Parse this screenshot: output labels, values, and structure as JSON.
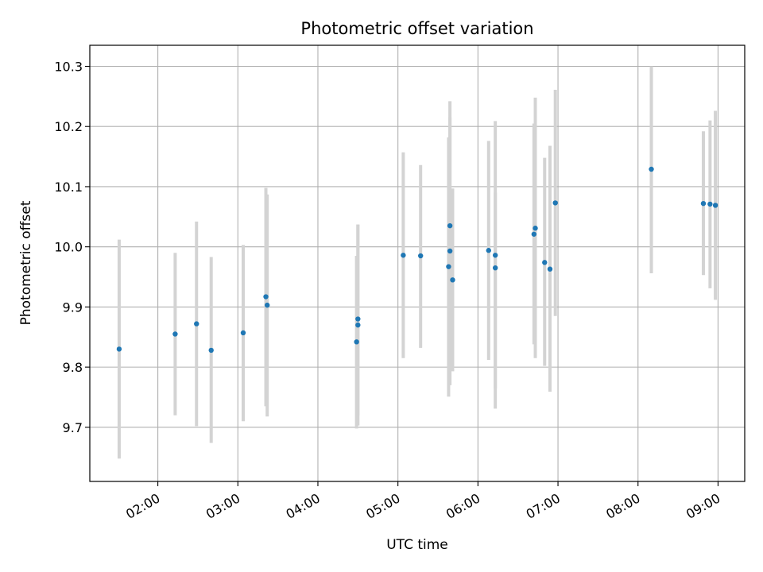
{
  "chart_data": {
    "type": "scatter",
    "title": "Photometric offset variation",
    "xlabel": "UTC time",
    "ylabel": "Photometric offset",
    "xlim": [
      "01:09",
      "09:20"
    ],
    "ylim": [
      9.61,
      10.335
    ],
    "grid": true,
    "x_ticks": [
      "02:00",
      "03:00",
      "04:00",
      "05:00",
      "06:00",
      "07:00",
      "08:00",
      "09:00"
    ],
    "y_ticks": [
      "9.7",
      "9.8",
      "9.9",
      "10.0",
      "10.1",
      "10.2",
      "10.3"
    ],
    "point_color": "#1f77b4",
    "errorbar_color": "#d3d3d3",
    "points": [
      {
        "t": "01:31",
        "y": 9.83,
        "lo": 9.648,
        "hi": 10.012
      },
      {
        "t": "02:13",
        "y": 9.855,
        "lo": 9.72,
        "hi": 9.99
      },
      {
        "t": "02:29",
        "y": 9.872,
        "lo": 9.702,
        "hi": 10.042
      },
      {
        "t": "02:40",
        "y": 9.828,
        "lo": 9.674,
        "hi": 9.983
      },
      {
        "t": "03:04",
        "y": 9.857,
        "lo": 9.71,
        "hi": 10.003
      },
      {
        "t": "03:21",
        "y": 9.917,
        "lo": 9.735,
        "hi": 10.098
      },
      {
        "t": "03:22",
        "y": 9.903,
        "lo": 9.718,
        "hi": 10.087
      },
      {
        "t": "04:29",
        "y": 9.842,
        "lo": 9.698,
        "hi": 9.985
      },
      {
        "t": "04:30",
        "y": 9.87,
        "lo": 9.703,
        "hi": 10.037
      },
      {
        "t": "04:30",
        "y": 9.88,
        "lo": 9.72,
        "hi": 10.037
      },
      {
        "t": "05:04",
        "y": 9.986,
        "lo": 9.815,
        "hi": 10.157
      },
      {
        "t": "05:17",
        "y": 9.985,
        "lo": 9.832,
        "hi": 10.136
      },
      {
        "t": "05:38",
        "y": 9.967,
        "lo": 9.751,
        "hi": 10.182
      },
      {
        "t": "05:39",
        "y": 9.993,
        "lo": 9.77,
        "hi": 10.215
      },
      {
        "t": "05:39",
        "y": 10.035,
        "lo": 9.83,
        "hi": 10.242
      },
      {
        "t": "05:41",
        "y": 9.945,
        "lo": 9.793,
        "hi": 10.097
      },
      {
        "t": "06:08",
        "y": 9.994,
        "lo": 9.812,
        "hi": 10.176
      },
      {
        "t": "06:13",
        "y": 9.965,
        "lo": 9.731,
        "hi": 10.09
      },
      {
        "t": "06:13",
        "y": 9.986,
        "lo": 9.765,
        "hi": 10.209
      },
      {
        "t": "06:42",
        "y": 10.021,
        "lo": 9.838,
        "hi": 10.205
      },
      {
        "t": "06:43",
        "y": 10.031,
        "lo": 9.815,
        "hi": 10.248
      },
      {
        "t": "06:50",
        "y": 9.974,
        "lo": 9.802,
        "hi": 10.148
      },
      {
        "t": "06:54",
        "y": 9.963,
        "lo": 9.759,
        "hi": 10.168
      },
      {
        "t": "06:58",
        "y": 10.073,
        "lo": 9.885,
        "hi": 10.261
      },
      {
        "t": "08:10",
        "y": 10.129,
        "lo": 9.956,
        "hi": 10.3
      },
      {
        "t": "08:49",
        "y": 10.072,
        "lo": 9.953,
        "hi": 10.192
      },
      {
        "t": "08:54",
        "y": 10.071,
        "lo": 9.931,
        "hi": 10.21
      },
      {
        "t": "08:58",
        "y": 10.069,
        "lo": 9.912,
        "hi": 10.226
      }
    ]
  }
}
